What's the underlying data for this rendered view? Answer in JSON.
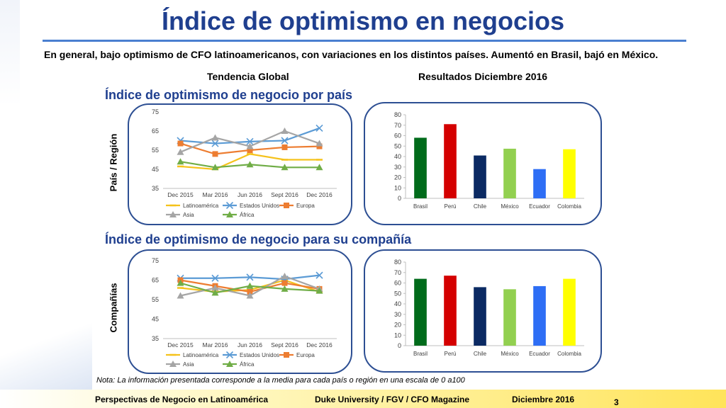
{
  "header": {
    "title": "Índice de optimismo en negocios",
    "intro": "En general, bajo optimismo de CFO latinoamericanos, con variaciones en los distintos países. Aumentó en Brasil, bajó en México.",
    "col_left": "Tendencia Global",
    "col_right": "Resultados Diciembre 2016"
  },
  "sections": {
    "top_title": "Índice de optimismo de negocio por país",
    "top_side_label": "País / Región",
    "bottom_title": "Índice de optimismo de negocio para su compañía",
    "bottom_side_label": "Compañías"
  },
  "note": "Nota: La información presentada corresponde a la media para cada país o región en una escala de 0 a100",
  "footer": {
    "left": "Perspectivas de Negocio en Latinoamérica",
    "center": "Duke University / FGV / CFO Magazine",
    "right": "Diciembre 2016",
    "page": "3"
  },
  "chart_data": [
    {
      "type": "line",
      "x": [
        "Dec 2015",
        "Mar 2016",
        "Jun 2016",
        "Sept 2016",
        "Dec 2016"
      ],
      "ylim": [
        35,
        75
      ],
      "yticks": [
        35,
        45,
        55,
        65,
        75
      ],
      "legend": "bottom",
      "series": [
        {
          "name": "Latinoamérica",
          "color": "#f5c21b",
          "values": [
            46.5,
            45,
            53,
            50,
            50
          ]
        },
        {
          "name": "Estados Unidos",
          "color": "#5b9bd5",
          "values": [
            60,
            58.5,
            59.5,
            60,
            66.5
          ]
        },
        {
          "name": "Europa",
          "color": "#ed7d31",
          "values": [
            58.5,
            53,
            55,
            56.5,
            57
          ]
        },
        {
          "name": "Asia",
          "color": "#a5a5a5",
          "values": [
            54,
            61.5,
            57,
            65,
            58.5
          ]
        },
        {
          "name": "África",
          "color": "#70ad47",
          "values": [
            49,
            46,
            47.5,
            46,
            46
          ]
        }
      ]
    },
    {
      "type": "bar",
      "categories": [
        "Brasil",
        "Perú",
        "Chile",
        "México",
        "Ecuador",
        "Colombia"
      ],
      "values": [
        58,
        71,
        41,
        47.5,
        28,
        47
      ],
      "colors": [
        "#006b1b",
        "#d40000",
        "#0b2a63",
        "#92d050",
        "#2e6ef5",
        "#ffff00"
      ],
      "ylim": [
        0,
        80
      ],
      "yticks": [
        0,
        10,
        20,
        30,
        40,
        50,
        60,
        70,
        80
      ]
    },
    {
      "type": "line",
      "x": [
        "Dec 2015",
        "Mar 2016",
        "Jun 2016",
        "Sept 2016",
        "Dec 2016"
      ],
      "ylim": [
        35,
        75
      ],
      "yticks": [
        35,
        45,
        55,
        65,
        75
      ],
      "legend": "bottom",
      "series": [
        {
          "name": "Latinoamérica",
          "color": "#f5c21b",
          "values": [
            61,
            59,
            60,
            65,
            59
          ]
        },
        {
          "name": "Estados Unidos",
          "color": "#5b9bd5",
          "values": [
            66,
            66,
            66.5,
            65.5,
            67.5
          ]
        },
        {
          "name": "Europa",
          "color": "#ed7d31",
          "values": [
            65,
            62,
            59,
            63.5,
            60.5
          ]
        },
        {
          "name": "Asia",
          "color": "#a5a5a5",
          "values": [
            57,
            61,
            57,
            67,
            60.5
          ]
        },
        {
          "name": "África",
          "color": "#70ad47",
          "values": [
            63.5,
            58.5,
            62,
            60.5,
            59.5
          ]
        }
      ]
    },
    {
      "type": "bar",
      "categories": [
        "Brasil",
        "Perú",
        "Chile",
        "México",
        "Ecuador",
        "Colombia"
      ],
      "values": [
        64,
        67,
        56,
        54,
        57,
        64
      ],
      "colors": [
        "#006b1b",
        "#d40000",
        "#0b2a63",
        "#92d050",
        "#2e6ef5",
        "#ffff00"
      ],
      "ylim": [
        0,
        80
      ],
      "yticks": [
        0,
        10,
        20,
        30,
        40,
        50,
        60,
        70,
        80
      ]
    }
  ]
}
